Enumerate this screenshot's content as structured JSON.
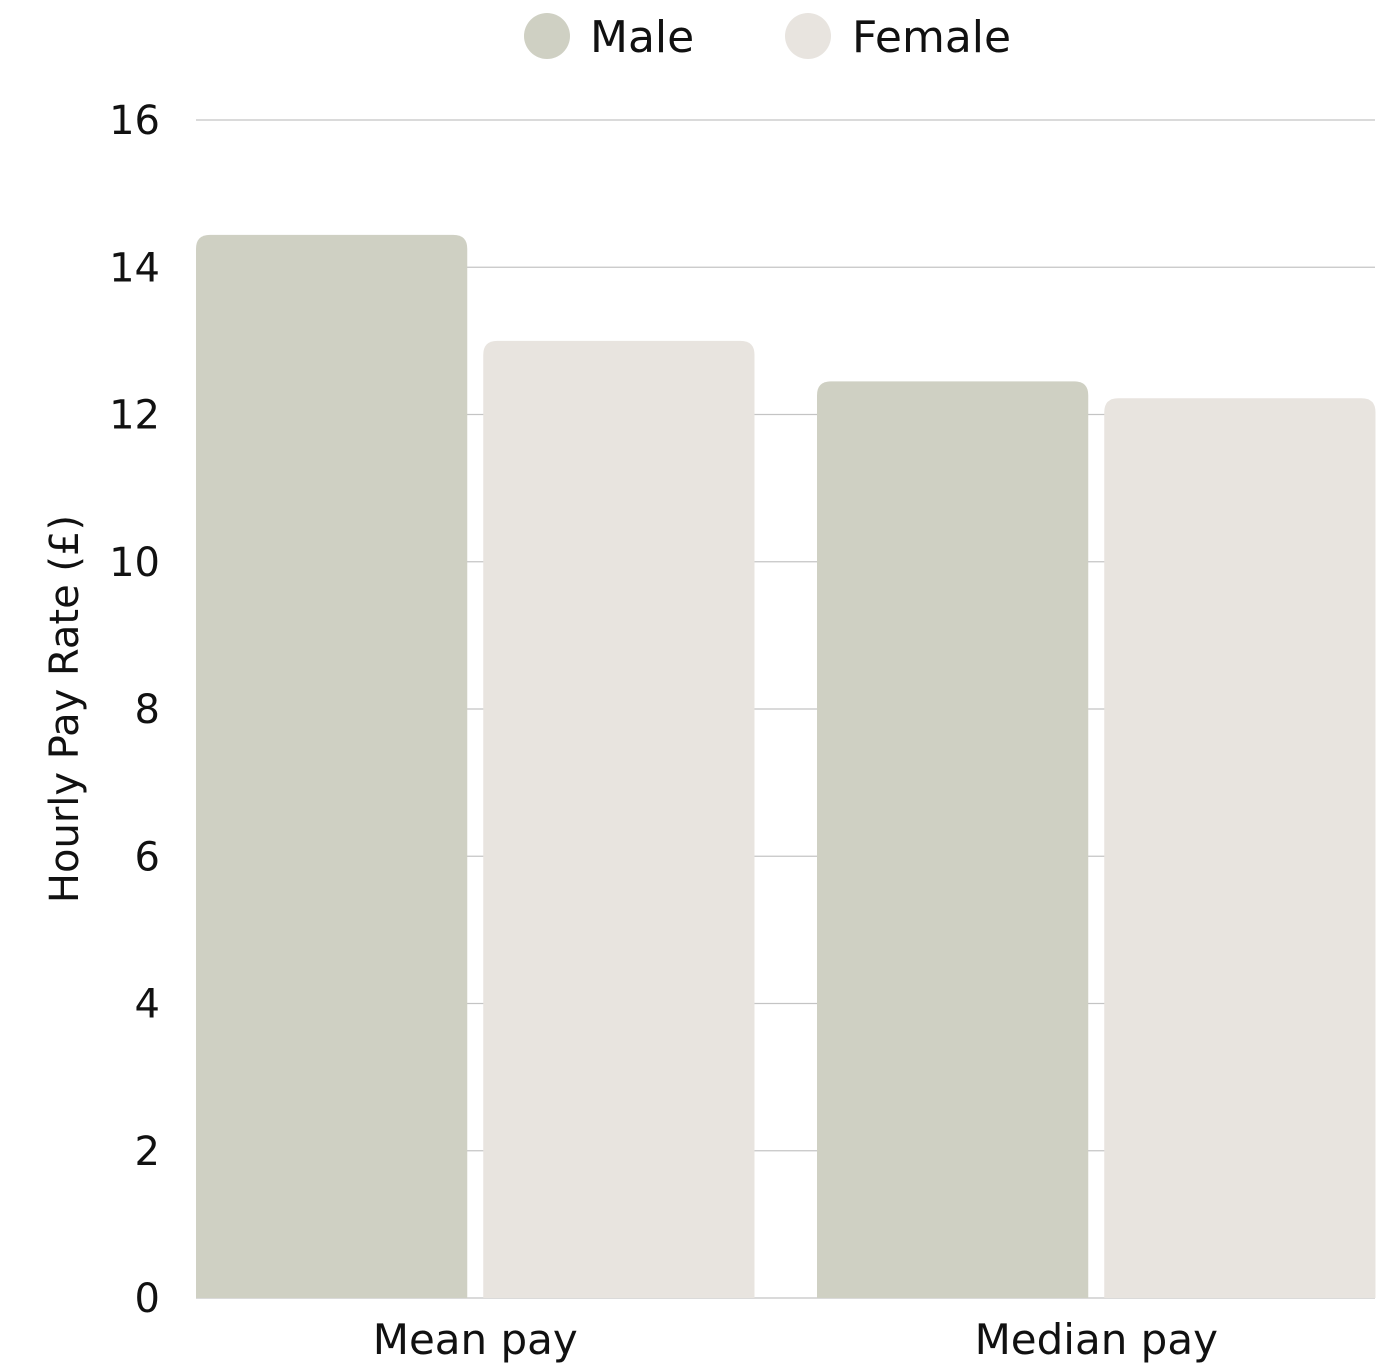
{
  "chart_data": {
    "type": "bar",
    "categories": [
      "Mean pay",
      "Median pay"
    ],
    "series": [
      {
        "name": "Male",
        "values": [
          14.44,
          12.45
        ],
        "color": "#cfd0c3"
      },
      {
        "name": "Female",
        "values": [
          13.0,
          12.22
        ],
        "color": "#e8e4df"
      }
    ],
    "xlabel": "",
    "ylabel": "Hourly Pay Rate (£)",
    "ylim": [
      0,
      16
    ],
    "yticks": [
      0,
      2,
      4,
      6,
      8,
      10,
      12,
      14,
      16
    ],
    "grid": true,
    "legend_position": "top-center"
  }
}
